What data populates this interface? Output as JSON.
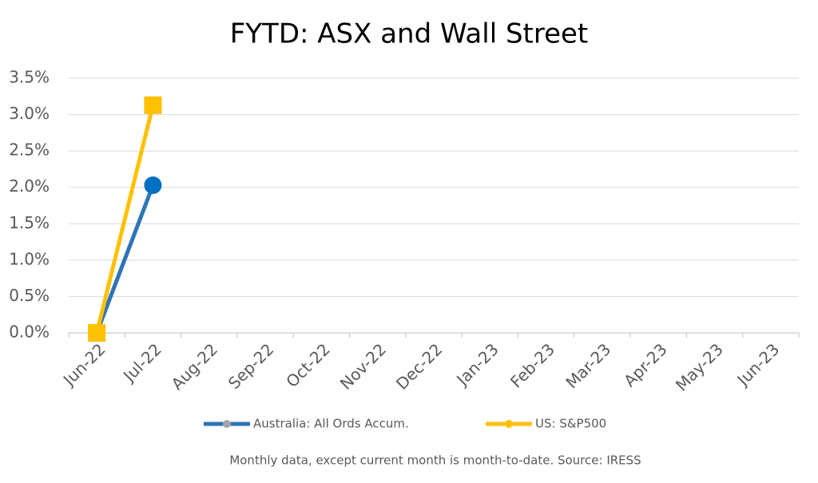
{
  "chart_data": {
    "type": "line",
    "title": "FYTD: ASX and Wall Street",
    "note": "Monthly data, except current month is month-to-date.  Source: IRESS",
    "categories": [
      "Jun-22",
      "Jul-22",
      "Aug-22",
      "Sep-22",
      "Oct-22",
      "Nov-22",
      "Dec-22",
      "Jan-23",
      "Feb-23",
      "Mar-23",
      "Apr-23",
      "May-23",
      "Jun-23"
    ],
    "series": [
      {
        "name": "Australia: All Ords Accum.",
        "color": "#2e75b6",
        "marker": "circle",
        "marker_color": "#0070c0",
        "values": [
          0,
          2.03,
          null,
          null,
          null,
          null,
          null,
          null,
          null,
          null,
          null,
          null,
          null
        ]
      },
      {
        "name": "US: S&P500",
        "color": "#ffc000",
        "marker": "square",
        "marker_color": "#ffc000",
        "values": [
          0,
          3.13,
          null,
          null,
          null,
          null,
          null,
          null,
          null,
          null,
          null,
          null,
          null
        ]
      }
    ],
    "ylim": [
      0,
      3.5
    ],
    "yticks": [
      {
        "value": 0,
        "label": "0.0%"
      },
      {
        "value": 0.5,
        "label": "0.5%"
      },
      {
        "value": 1,
        "label": "1.0%"
      },
      {
        "value": 1.5,
        "label": "1.5%"
      },
      {
        "value": 2,
        "label": "2.0%"
      },
      {
        "value": 2.5,
        "label": "2.5%"
      },
      {
        "value": 3,
        "label": "3.0%"
      },
      {
        "value": 3.5,
        "label": "3.5%"
      }
    ],
    "grid": true,
    "legend": "bottom"
  }
}
